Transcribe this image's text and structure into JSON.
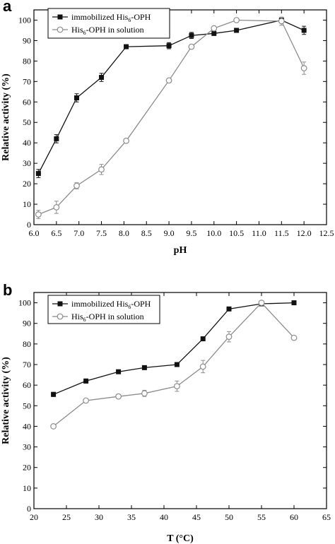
{
  "chart_data": [
    {
      "type": "line",
      "panel_label": "a",
      "xlabel": "pH",
      "ylabel": "Relative activity (%)",
      "xlim": [
        6.0,
        12.5
      ],
      "ylim": [
        0,
        105
      ],
      "xticks": [
        "6.0",
        "6.5",
        "7.0",
        "7.5",
        "8.0",
        "8.5",
        "9.0",
        "9.5",
        "10.0",
        "10.5",
        "11.0",
        "11.5",
        "12.0",
        "12.5"
      ],
      "yticks": [
        "0",
        "10",
        "20",
        "30",
        "40",
        "50",
        "60",
        "70",
        "80",
        "90",
        "100"
      ],
      "legend_position": "top-left",
      "series": [
        {
          "name": "immobilized His6-OPH",
          "name_main": "immobilized His",
          "name_sub": "6",
          "name_tail": "-OPH",
          "marker": "filled-square",
          "color": "#111111",
          "x": [
            6.1,
            6.5,
            6.95,
            7.5,
            8.05,
            9.0,
            9.5,
            10.0,
            10.5,
            11.5,
            12.0
          ],
          "y": [
            25,
            42,
            62,
            72,
            87,
            87.5,
            92.5,
            93.5,
            95,
            100,
            95
          ],
          "err": [
            2,
            2,
            2,
            2,
            1,
            1.5,
            1.5,
            1,
            1,
            1,
            2
          ]
        },
        {
          "name": "His6-OPH in solution",
          "name_main": "His",
          "name_sub": "6",
          "name_tail": "-OPH in solution",
          "marker": "open-circle",
          "color": "#8c8c8c",
          "x": [
            6.1,
            6.5,
            6.95,
            7.5,
            8.05,
            9.0,
            9.5,
            10.0,
            10.5,
            11.5,
            12.0
          ],
          "y": [
            5,
            8.5,
            19,
            27,
            41,
            70.5,
            87,
            96,
            100,
            99.5,
            76.5
          ],
          "err": [
            2,
            3,
            1.5,
            2.5,
            1,
            1,
            1,
            1,
            1,
            2,
            3
          ]
        }
      ]
    },
    {
      "type": "line",
      "panel_label": "b",
      "xlabel": "T (°C)",
      "ylabel": "Relative activity (%)",
      "xlim": [
        20,
        65
      ],
      "ylim": [
        0,
        105
      ],
      "xticks": [
        "20",
        "25",
        "30",
        "35",
        "40",
        "45",
        "50",
        "55",
        "60",
        "65"
      ],
      "yticks": [
        "0",
        "10",
        "20",
        "30",
        "40",
        "50",
        "60",
        "70",
        "80",
        "90",
        "100"
      ],
      "legend_position": "top-left",
      "series": [
        {
          "name": "immobilized His6-OPH",
          "name_main": "immobilized His",
          "name_sub": "6",
          "name_tail": "-OPH",
          "marker": "filled-square",
          "color": "#111111",
          "x": [
            23,
            28,
            33,
            37,
            42,
            46,
            50,
            55,
            60
          ],
          "y": [
            55.5,
            62,
            66.5,
            68.5,
            70,
            82.5,
            97,
            99.5,
            100
          ],
          "err": [
            1,
            1,
            0.8,
            0.8,
            0.8,
            0.8,
            0.8,
            0.8,
            0.8
          ]
        },
        {
          "name": "His6-OPH in solution",
          "name_main": "His",
          "name_sub": "6",
          "name_tail": "-OPH in solution",
          "marker": "open-circle",
          "color": "#8c8c8c",
          "x": [
            23,
            28,
            33,
            37,
            42,
            46,
            50,
            55,
            60
          ],
          "y": [
            40,
            52.5,
            54.5,
            56,
            59.5,
            69,
            83.5,
            100,
            83
          ],
          "err": [
            0.8,
            0.8,
            1,
            1.5,
            2.5,
            3,
            2.5,
            1,
            0.8
          ]
        }
      ]
    }
  ]
}
